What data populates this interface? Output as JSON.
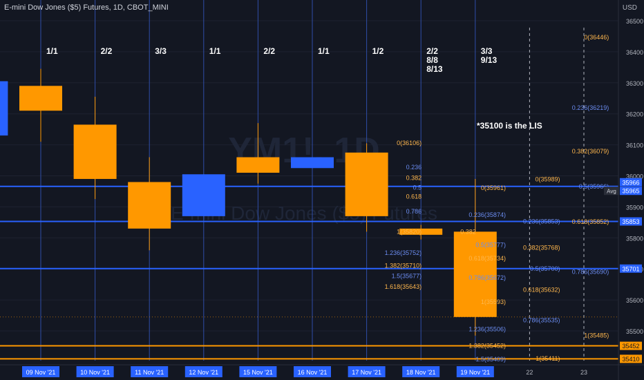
{
  "header": {
    "title": "E-mini Dow Jones ($5) Futures, 1D, CBOT_MINI",
    "currency": "USD"
  },
  "watermark": {
    "symbol": "YM1!, 1D",
    "name": "E-mini Dow Jones ($5) Futures"
  },
  "colors": {
    "background": "#131722",
    "bull": "#2962ff",
    "bear": "#ff9800",
    "fib_orange": "#ff9800",
    "fib_blue": "#5b7be8",
    "level_blue": "#2962ff",
    "grid": "#1e2230",
    "axis_text": "#b2b5be"
  },
  "chart_data": {
    "type": "candlestick",
    "y_axis": {
      "min": 35400,
      "max": 36560,
      "ticks": [
        35500,
        35600,
        35700,
        35800,
        35900,
        36000,
        36100,
        36200,
        36300,
        36400,
        36500
      ]
    },
    "x_axis": {
      "labels": [
        "09 Nov '21",
        "10 Nov '21",
        "11 Nov '21",
        "12 Nov '21",
        "15 Nov '21",
        "16 Nov '21",
        "17 Nov '21",
        "18 Nov '21",
        "19 Nov '21",
        "22",
        "23"
      ]
    },
    "candles": [
      {
        "date": "08 Nov '21",
        "open": 36130,
        "close": 36305,
        "high": 36305,
        "low": 36130
      },
      {
        "date": "09 Nov '21",
        "open": 36290,
        "close": 36210,
        "high": 36345,
        "low": 36110
      },
      {
        "date": "10 Nov '21",
        "open": 36165,
        "close": 35990,
        "high": 36255,
        "low": 35925
      },
      {
        "date": "11 Nov '21",
        "open": 35980,
        "close": 35830,
        "high": 36060,
        "low": 35760
      },
      {
        "date": "12 Nov '21",
        "open": 35870,
        "close": 36005,
        "high": 36005,
        "low": 35870
      },
      {
        "date": "15 Nov '21",
        "open": 36060,
        "close": 36010,
        "high": 36170,
        "low": 35975
      },
      {
        "date": "16 Nov '21",
        "open": 36025,
        "close": 36060,
        "high": 36060,
        "low": 36025
      },
      {
        "date": "17 Nov '21",
        "open": 36075,
        "close": 35870,
        "high": 36105,
        "low": 35820
      },
      {
        "date": "18 Nov '21",
        "open": 35830,
        "close": 35810,
        "high": 35842,
        "low": 35795
      },
      {
        "date": "19 Nov '21",
        "open": 35820,
        "close": 35545,
        "high": 35990,
        "low": 35485
      }
    ],
    "horizontal_levels": [
      {
        "price": 35966,
        "label": "35966",
        "color": "#2962ff"
      },
      {
        "price": 35965,
        "label": "35965",
        "color": "#2962ff",
        "tag": "Avg"
      },
      {
        "price": 35853,
        "label": "35853",
        "color": "#2962ff"
      },
      {
        "price": 35701,
        "label": "35701",
        "color": "#2962ff"
      },
      {
        "price": 35452,
        "label": "35452",
        "color": "#ff9800"
      },
      {
        "price": 35410,
        "label": "35410",
        "color": "#ff9800"
      }
    ],
    "cycle_labels": [
      {
        "date": "09 Nov '21",
        "text": [
          "1/1"
        ]
      },
      {
        "date": "10 Nov '21",
        "text": [
          "2/2"
        ]
      },
      {
        "date": "11 Nov '21",
        "text": [
          "3/3"
        ]
      },
      {
        "date": "12 Nov '21",
        "text": [
          "1/1"
        ]
      },
      {
        "date": "15 Nov '21",
        "text": [
          "2/2"
        ]
      },
      {
        "date": "16 Nov '21",
        "text": [
          "1/1"
        ]
      },
      {
        "date": "17 Nov '21",
        "text": [
          "1/2"
        ]
      },
      {
        "date": "18 Nov '21",
        "text": [
          "2/2",
          "8/8",
          "8/13"
        ]
      },
      {
        "date": "19 Nov '21",
        "text": [
          "3/3",
          "9/13"
        ]
      }
    ],
    "annotation": "*35100 is the LIS",
    "fib_labels": [
      {
        "text": "0(36446)",
        "color": "orange",
        "slot": 10.5,
        "price": 36446
      },
      {
        "text": "0.236(36219)",
        "color": "blue",
        "slot": 10.5,
        "price": 36219
      },
      {
        "text": "0.382(36079)",
        "color": "orange",
        "slot": 10.5,
        "price": 36079
      },
      {
        "text": "0.5(35966)",
        "color": "blue",
        "slot": 10.5,
        "price": 35966
      },
      {
        "text": "0.618(35852)",
        "color": "orange",
        "slot": 10.5,
        "price": 35852
      },
      {
        "text": "0.786(35690)",
        "color": "blue",
        "slot": 10.5,
        "price": 35690
      },
      {
        "text": "1(35485)",
        "color": "orange",
        "slot": 10.5,
        "price": 35485
      },
      {
        "text": "0(35989)",
        "color": "orange",
        "slot": 9.6,
        "price": 35989
      },
      {
        "text": "0.236(35853)",
        "color": "blue",
        "slot": 9.6,
        "price": 35853
      },
      {
        "text": "0.382(35768)",
        "color": "orange",
        "slot": 9.6,
        "price": 35768
      },
      {
        "text": "0.5(35700)",
        "color": "blue",
        "slot": 9.6,
        "price": 35700
      },
      {
        "text": "0.618(35632)",
        "color": "orange",
        "slot": 9.6,
        "price": 35632
      },
      {
        "text": "0.786(35535)",
        "color": "blue",
        "slot": 9.6,
        "price": 35535
      },
      {
        "text": "1(35411)",
        "color": "orange",
        "slot": 9.6,
        "price": 35411
      },
      {
        "text": "0(35961)",
        "color": "orange",
        "slot": 8.6,
        "price": 35961
      },
      {
        "text": "0.236(35874)",
        "color": "blue",
        "slot": 8.6,
        "price": 35874
      },
      {
        "text": "0.382",
        "color": "orange",
        "slot": 8.05,
        "price": 35820
      },
      {
        "text": "0.5(35777)",
        "color": "blue",
        "slot": 8.6,
        "price": 35777
      },
      {
        "text": "0.618(35734)",
        "color": "orange",
        "slot": 8.6,
        "price": 35734
      },
      {
        "text": "0.786(35672)",
        "color": "blue",
        "slot": 8.6,
        "price": 35672
      },
      {
        "text": "1(35593)",
        "color": "orange",
        "slot": 8.6,
        "price": 35593
      },
      {
        "text": "1.236(35506)",
        "color": "blue",
        "slot": 8.6,
        "price": 35506
      },
      {
        "text": "1.382(35452)",
        "color": "orange",
        "slot": 8.6,
        "price": 35452
      },
      {
        "text": "1.5(35409)",
        "color": "blue",
        "slot": 8.6,
        "price": 35409
      },
      {
        "text": "0(36106)",
        "color": "orange",
        "slot": 7.05,
        "price": 36106
      },
      {
        "text": "0.236",
        "color": "blue",
        "slot": 7.05,
        "price": 36028
      },
      {
        "text": "0.382",
        "color": "orange",
        "slot": 7.05,
        "price": 35993
      },
      {
        "text": "0.5",
        "color": "blue",
        "slot": 7.05,
        "price": 35962
      },
      {
        "text": "0.618",
        "color": "orange",
        "slot": 7.05,
        "price": 35933
      },
      {
        "text": "0.786",
        "color": "blue",
        "slot": 7.05,
        "price": 35885
      },
      {
        "text": "1(35820)",
        "color": "orange",
        "slot": 7.05,
        "price": 35820
      },
      {
        "text": "1.236(35752)",
        "color": "blue",
        "slot": 7.05,
        "price": 35752
      },
      {
        "text": "1.382(35710)",
        "color": "orange",
        "slot": 7.05,
        "price": 35710
      },
      {
        "text": "1.5(35677)",
        "color": "blue",
        "slot": 7.05,
        "price": 35677
      },
      {
        "text": "1.618(35643)",
        "color": "orange",
        "slot": 7.05,
        "price": 35643
      }
    ]
  }
}
